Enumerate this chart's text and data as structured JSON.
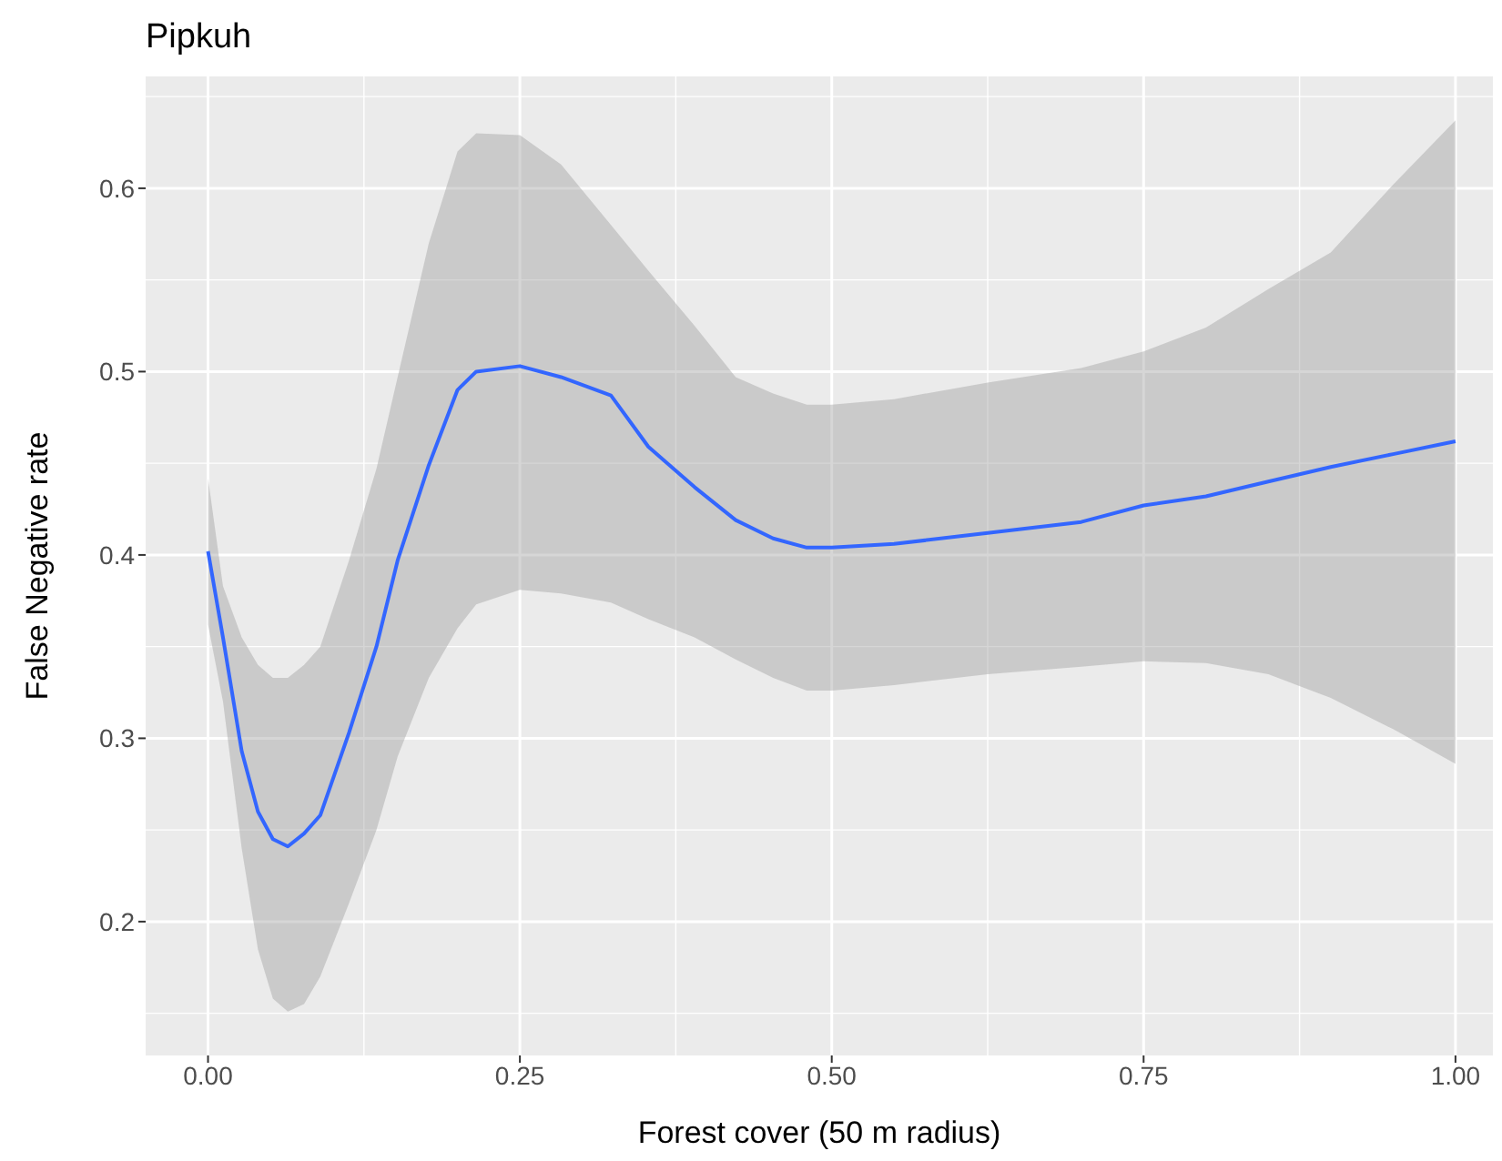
{
  "chart_data": {
    "type": "line",
    "title": "Pipkuh",
    "xlabel": "Forest cover (50 m radius)",
    "ylabel": "False Negative rate",
    "xlim": [
      -0.05,
      1.03
    ],
    "xticks": [
      {
        "value": 0,
        "label": "0.00"
      },
      {
        "value": 0.25,
        "label": "0.25"
      },
      {
        "value": 0.5,
        "label": "0.50"
      },
      {
        "value": 0.75,
        "label": "0.75"
      },
      {
        "value": 1,
        "label": "1.00"
      }
    ],
    "ylim": [
      0.127,
      0.661
    ],
    "yticks": [
      0.2,
      0.3,
      0.4,
      0.5,
      0.6
    ],
    "grid": true,
    "legend": false,
    "series": [
      {
        "color": "#3366ff",
        "x": [
          0,
          0.012,
          0.027,
          0.04,
          0.052,
          0.064,
          0.077,
          0.09,
          0.113,
          0.135,
          0.152,
          0.177,
          0.2,
          0.215,
          0.25,
          0.283,
          0.323,
          0.353,
          0.39,
          0.423,
          0.453,
          0.48,
          0.5,
          0.55,
          0.625,
          0.7,
          0.75,
          0.8,
          0.85,
          0.9,
          0.95,
          1.0
        ],
        "values": [
          0.402,
          0.355,
          0.293,
          0.26,
          0.245,
          0.241,
          0.248,
          0.258,
          0.303,
          0.35,
          0.397,
          0.449,
          0.49,
          0.5,
          0.503,
          0.497,
          0.487,
          0.459,
          0.437,
          0.419,
          0.409,
          0.404,
          0.404,
          0.406,
          0.412,
          0.418,
          0.427,
          0.432,
          0.44,
          0.448,
          0.455,
          0.462
        ],
        "lower": [
          0.362,
          0.32,
          0.24,
          0.185,
          0.158,
          0.151,
          0.155,
          0.17,
          0.21,
          0.25,
          0.29,
          0.333,
          0.36,
          0.373,
          0.381,
          0.379,
          0.374,
          0.365,
          0.355,
          0.343,
          0.333,
          0.326,
          0.326,
          0.329,
          0.335,
          0.339,
          0.342,
          0.341,
          0.335,
          0.322,
          0.305,
          0.286
        ],
        "upper": [
          0.442,
          0.383,
          0.355,
          0.34,
          0.333,
          0.333,
          0.34,
          0.35,
          0.397,
          0.447,
          0.497,
          0.57,
          0.62,
          0.63,
          0.629,
          0.613,
          0.58,
          0.555,
          0.525,
          0.497,
          0.488,
          0.482,
          0.482,
          0.485,
          0.494,
          0.502,
          0.511,
          0.524,
          0.545,
          0.565,
          0.602,
          0.637
        ]
      }
    ]
  }
}
